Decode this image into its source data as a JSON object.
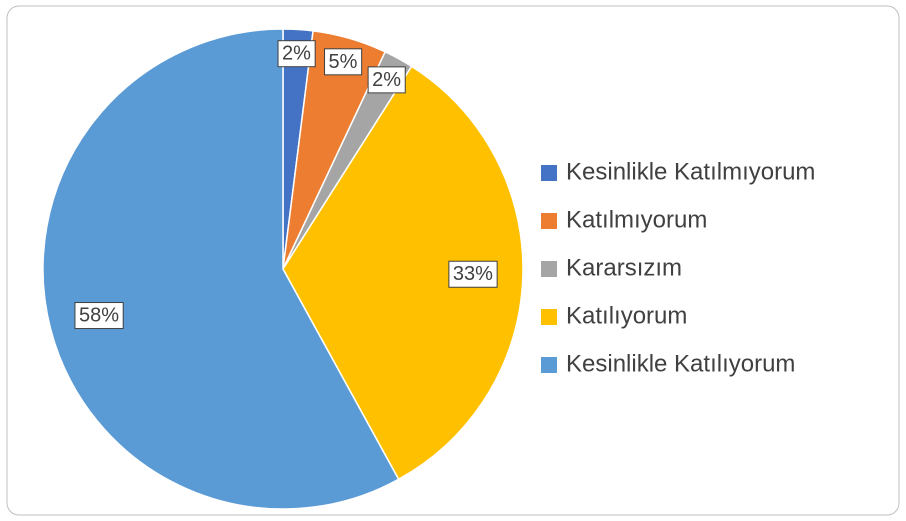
{
  "chart_data": {
    "type": "pie",
    "categories": [
      "Kesinlikle Katılmıyorum",
      "Katılmıyorum",
      "Kararsızım",
      "Katılıyorum",
      "Kesinlikle Katılıyorum"
    ],
    "values": [
      2,
      5,
      2,
      33,
      58
    ],
    "value_labels": [
      "2%",
      "5%",
      "2%",
      "33%",
      "58%"
    ],
    "colors": [
      "#4472c4",
      "#ed7d31",
      "#a5a5a5",
      "#ffc000",
      "#5b9bd5"
    ],
    "legend": "right"
  }
}
